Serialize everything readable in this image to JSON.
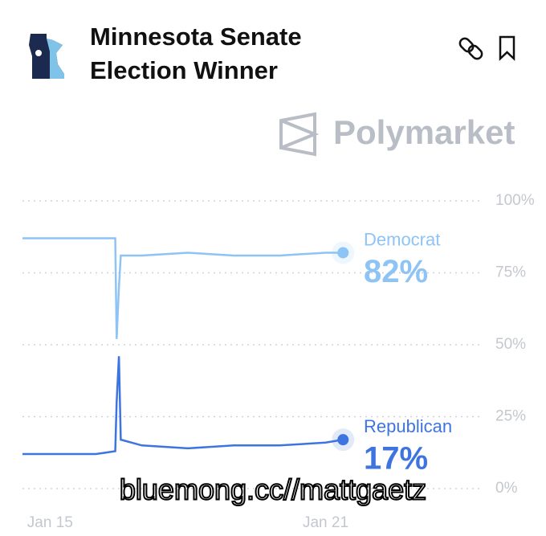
{
  "chart_data": {
    "type": "line",
    "title": "Minnesota Senate Election Winner",
    "brand": "Polymarket",
    "watermark": "bluemong.cc//mattgaetz",
    "x": [
      14.4,
      16.0,
      16.42,
      16.45,
      16.5,
      16.54,
      17,
      18,
      19,
      20,
      21,
      21.38
    ],
    "xlim": [
      14.4,
      24.4
    ],
    "xticks": [
      {
        "value": 15,
        "label": "Jan 15"
      },
      {
        "value": 21,
        "label": "Jan 21"
      }
    ],
    "ylim": [
      0,
      100
    ],
    "yticks": [
      {
        "value": 0,
        "label": "0%"
      },
      {
        "value": 25,
        "label": "25%"
      },
      {
        "value": 50,
        "label": "50%"
      },
      {
        "value": 75,
        "label": "75%"
      },
      {
        "value": 100,
        "label": "100%"
      }
    ],
    "grid": true,
    "series": [
      {
        "name": "Democrat",
        "color": "#8ec3f5",
        "values": [
          87,
          87,
          87,
          52,
          70,
          81,
          81,
          82,
          81,
          81,
          82,
          82
        ],
        "value_labels": [
          null,
          null,
          null,
          null,
          null,
          null,
          null,
          null,
          null,
          null,
          null,
          "82%"
        ]
      },
      {
        "name": "Republican",
        "color": "#3d74e0",
        "values": [
          12,
          12,
          13,
          30,
          46,
          17,
          15,
          14,
          15,
          15,
          16,
          17
        ],
        "value_labels": [
          null,
          null,
          null,
          null,
          null,
          null,
          null,
          null,
          null,
          null,
          null,
          "17%"
        ]
      }
    ]
  }
}
